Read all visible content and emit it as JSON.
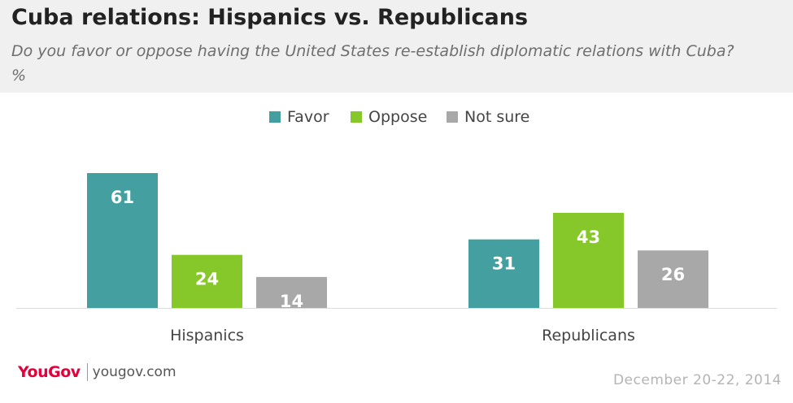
{
  "title": "Cuba relations: Hispanics vs. Republicans",
  "subtitle": "Do you favor or oppose having the United States re-establish diplomatic relations with Cuba? %",
  "footer": {
    "logo": "YouGov",
    "website": "yougov.com",
    "date": "December 20-22, 2014"
  },
  "chart_data": {
    "type": "bar",
    "categories": [
      "Hispanics",
      "Republicans"
    ],
    "series": [
      {
        "name": "Favor",
        "values": [
          61,
          31
        ],
        "color": "#44a0a0"
      },
      {
        "name": "Oppose",
        "values": [
          24,
          43
        ],
        "color": "#86c72a"
      },
      {
        "name": "Not sure",
        "values": [
          14,
          26
        ],
        "color": "#a8a8a8"
      }
    ],
    "ylim": [
      0,
      61
    ],
    "grid": false,
    "legend_position": "top-center",
    "data_labels": true
  }
}
